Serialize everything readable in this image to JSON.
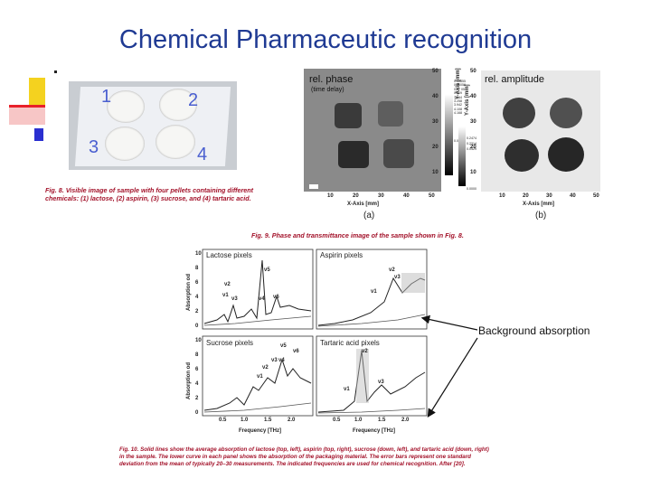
{
  "slide": {
    "title": "Chemical Pharmaceutic recognition",
    "annotation": "Background absorption"
  },
  "fig8": {
    "pellet_labels": [
      "1",
      "2",
      "3",
      "4"
    ],
    "caption_label": "Fig. 8.",
    "caption_text": "Visible image of sample with four pellets containing different chemicals: (1) lactose, (2) aspirin, (3) sucrose, and (4) tartaric acid."
  },
  "fig9": {
    "panel_a": {
      "title": "rel. phase",
      "subtitle": "(time delay)",
      "colorbar_ticks": [
        "0.00855",
        "0.00056",
        "0.27 05",
        "0.109",
        "1.844",
        "3.258",
        "3.942",
        "4.108",
        "4.168",
        "0.0000"
      ],
      "yaxis_label": "Y-Axis [mm]",
      "xaxis_label": "X-Axis [mm]",
      "x_ticks": [
        "10",
        "20",
        "30",
        "40",
        "50"
      ],
      "y_ticks": [
        "50",
        "40",
        "30",
        "20",
        "10"
      ],
      "letter": "(a)"
    },
    "panel_b": {
      "title": "rel. amplitude",
      "colorbar_ticks": [
        "0.2474",
        "0.2314",
        "0.0429",
        "0.0000"
      ],
      "yaxis_label": "Y-Axis [mm]",
      "xaxis_label": "X-Axis [mm]",
      "x_ticks": [
        "10",
        "20",
        "30",
        "40",
        "50"
      ],
      "y_ticks": [
        "50",
        "40",
        "30",
        "20",
        "10"
      ],
      "letter": "(b)"
    },
    "caption_label": "Fig. 9.",
    "caption_text": "Phase and transmittance image of the sample shown in Fig. 8."
  },
  "fig10": {
    "ylabel": "Absorption od",
    "xlabel": "Frequency [THz]",
    "y_ticks": [
      "10",
      "8",
      "6",
      "4",
      "2",
      "0"
    ],
    "x_ticks": [
      "0.5",
      "1.0",
      "1.5",
      "2.0"
    ],
    "panels": [
      {
        "title": "Lactose pixels",
        "nu_labels": [
          "ν1",
          "ν2",
          "ν3",
          "ν4",
          "ν5",
          "ν6"
        ]
      },
      {
        "title": "Aspirin pixels",
        "nu_labels": [
          "ν1",
          "ν2",
          "ν3"
        ]
      },
      {
        "title": "Sucrose pixels",
        "nu_labels": [
          "ν1",
          "ν2",
          "ν3",
          "ν4",
          "ν5",
          "ν6"
        ]
      },
      {
        "title": "Tartaric acid pixels",
        "nu_labels": [
          "ν1",
          "ν2",
          "ν3"
        ]
      }
    ],
    "caption_label": "Fig. 10.",
    "caption_text": "Solid lines show the average absorption of lactose (top, left), aspirin (top, right), sucrose (down, left), and tartaric acid (down, right) in the sample. The lower curve in each panel shows the absorption of the packaging material. The error bars represent one standard deviation from the mean of typically 20–30 measurements. The indicated frequencies are used for chemical recognition. After [20]."
  },
  "colors": {
    "title": "#1f3a93",
    "caption": "#a3122a",
    "deco_yellow": "#f4d21f",
    "deco_red": "#e8202a",
    "deco_blue": "#2a2fd0"
  }
}
